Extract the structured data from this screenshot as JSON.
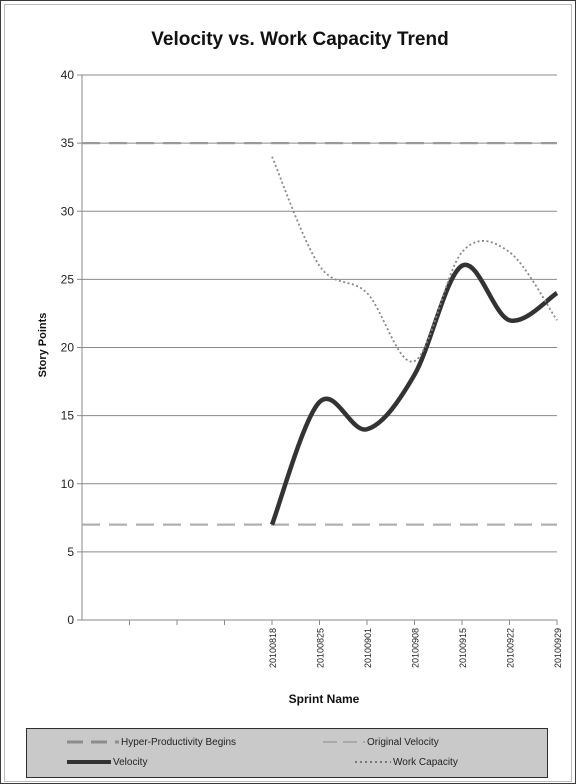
{
  "chart_data": {
    "type": "line",
    "title": "Velocity vs. Work Capacity Trend",
    "xlabel": "Sprint Name",
    "ylabel": "Story Points",
    "categories": [
      "",
      "",
      "",
      "20100818",
      "20100825",
      "20100901",
      "20100908",
      "20100915",
      "20100922",
      "20100929"
    ],
    "ylim": [
      0,
      40
    ],
    "yticks": [
      0,
      5,
      10,
      15,
      20,
      25,
      30,
      35,
      40
    ],
    "grid": true,
    "legend_position": "bottom",
    "series": [
      {
        "name": "Hyper-Productivity Begins",
        "values": [
          35,
          35,
          35,
          35,
          35,
          35,
          35,
          35,
          35,
          35
        ],
        "color": "#9a9a9a",
        "style": "long-dash"
      },
      {
        "name": "Original Velocity",
        "values": [
          7,
          7,
          7,
          7,
          7,
          7,
          7,
          7,
          7,
          7
        ],
        "color": "#b0b0b0",
        "style": "long-dash"
      },
      {
        "name": "Velocity",
        "values": [
          null,
          null,
          null,
          7,
          16,
          14,
          18,
          26,
          22,
          24
        ],
        "color": "#333333",
        "style": "solid-smooth"
      },
      {
        "name": "Work Capacity",
        "values": [
          null,
          null,
          null,
          34,
          26,
          24,
          19,
          27,
          27,
          22
        ],
        "color": "#888888",
        "style": "dotted-smooth"
      }
    ]
  }
}
